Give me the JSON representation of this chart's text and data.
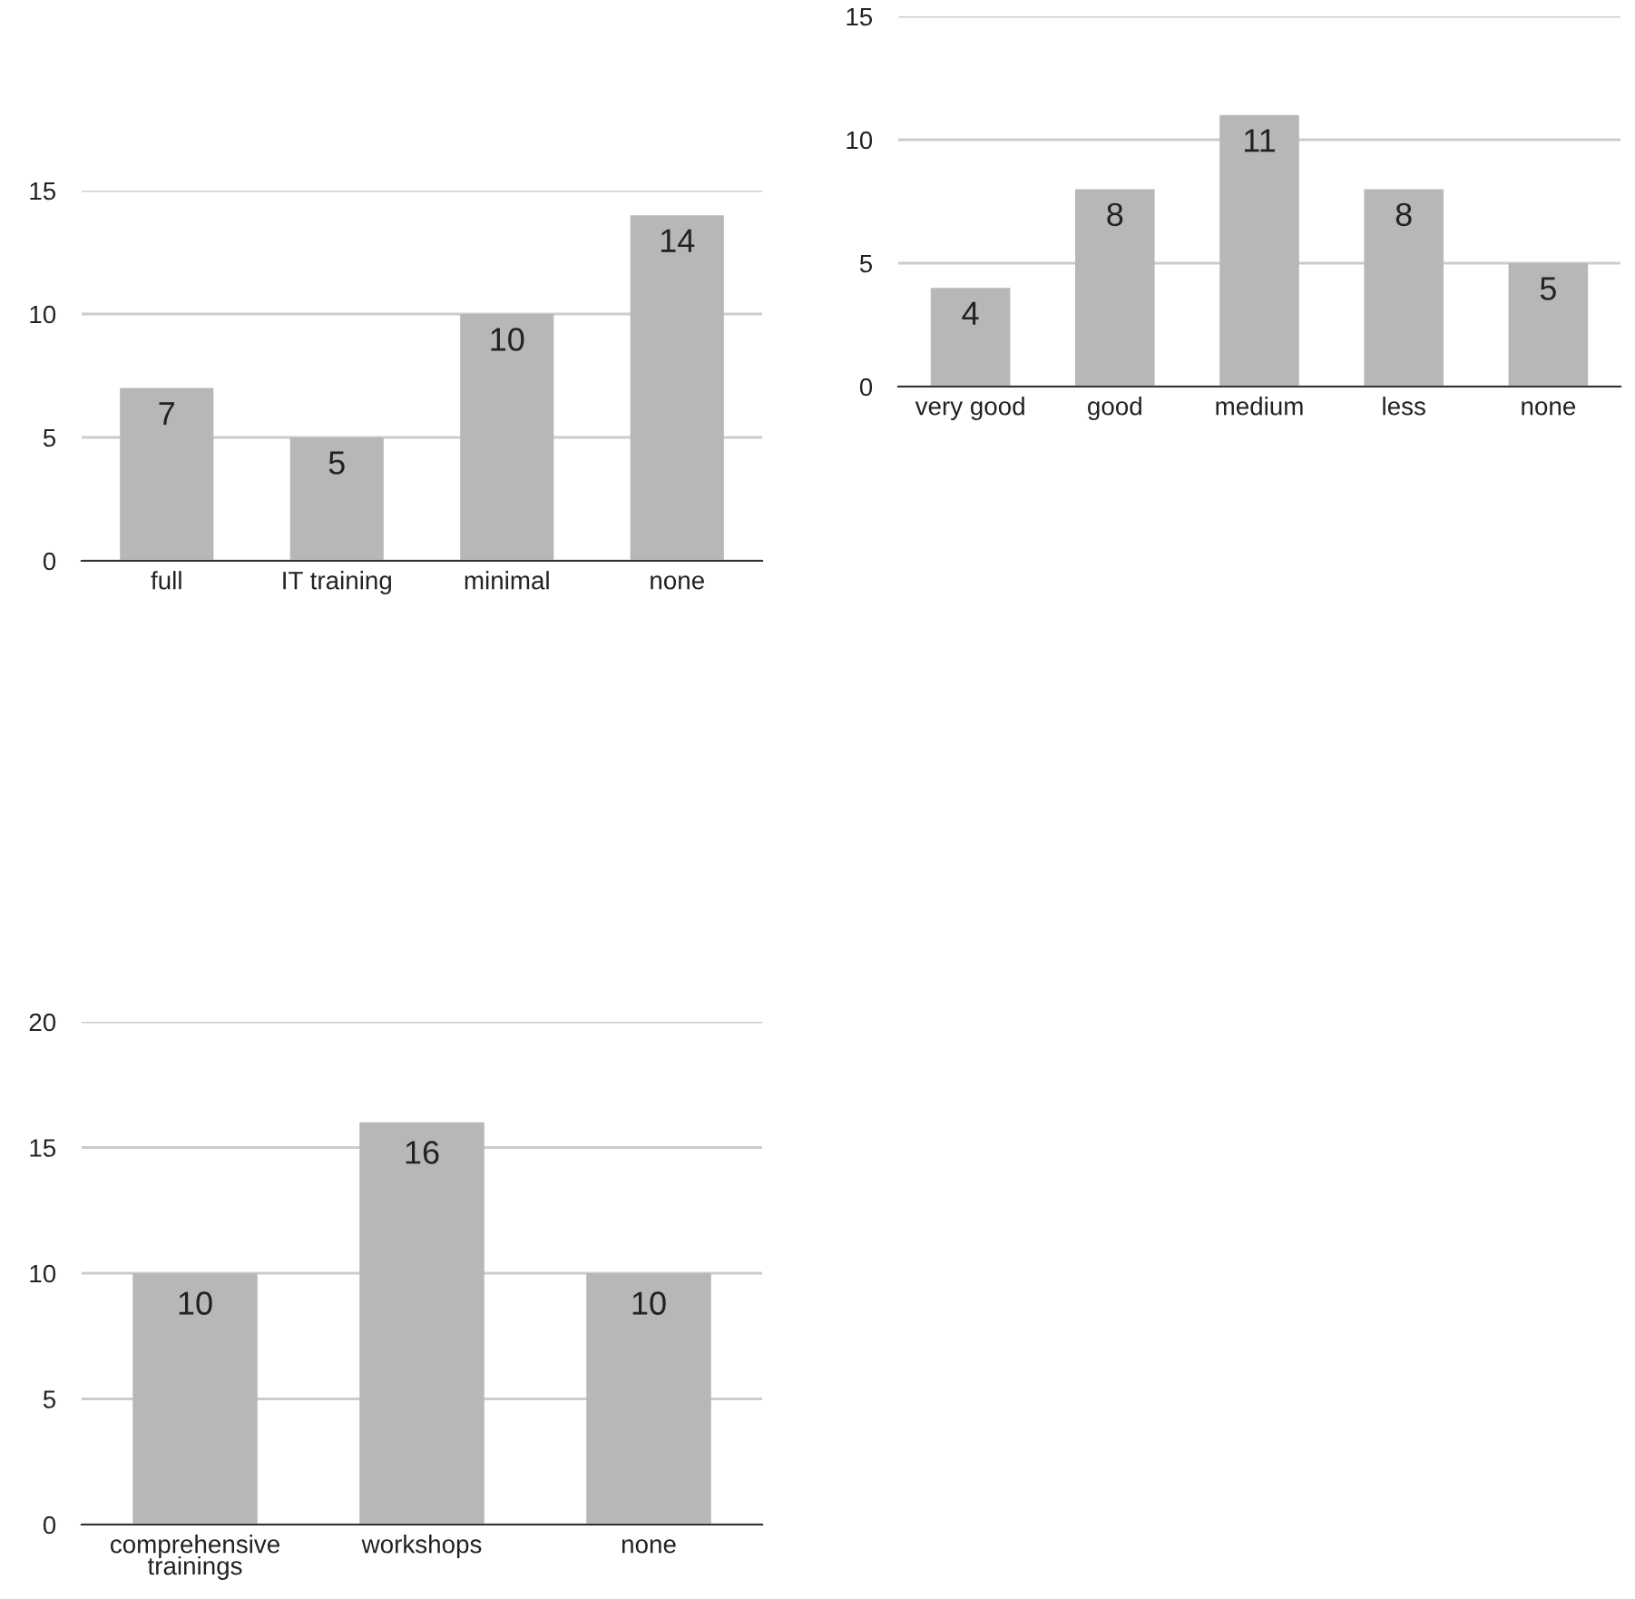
{
  "chart_data": [
    {
      "type": "bar",
      "categories": [
        "full",
        "IT training",
        "minimal",
        "none"
      ],
      "values": [
        7,
        5,
        10,
        14
      ],
      "color": "#b7b7b7",
      "ylim": [
        0,
        15
      ],
      "yticks": [
        0,
        5,
        10,
        15
      ],
      "grid": "y",
      "data_labels": true
    },
    {
      "type": "bar",
      "categories": [
        "very good",
        "good",
        "medium",
        "less",
        "none"
      ],
      "values": [
        4,
        8,
        11,
        8,
        5
      ],
      "color": "#b7b7b7",
      "ylim": [
        0,
        15
      ],
      "yticks": [
        0,
        5,
        10,
        15
      ],
      "grid": "y",
      "data_labels": true
    },
    {
      "type": "bar",
      "categories": [
        "comprehensive\ntrainings",
        "workshops",
        "none"
      ],
      "values": [
        10,
        16,
        10
      ],
      "color": "#b7b7b7",
      "ylim": [
        0,
        20
      ],
      "yticks": [
        0,
        5,
        10,
        15,
        20
      ],
      "grid": "y",
      "data_labels": true
    }
  ]
}
